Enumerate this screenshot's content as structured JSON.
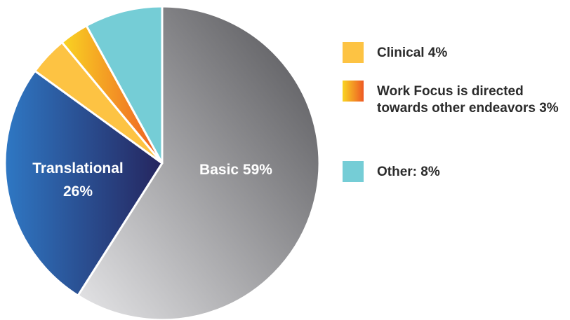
{
  "chart_data": {
    "type": "pie",
    "slices": [
      {
        "label": "Basic",
        "label_text": "Basic 59%",
        "value": 59,
        "color": "#6f6f72",
        "color_light": "#e6e6e8",
        "color_dark": "#505054"
      },
      {
        "label": "Translational",
        "label_text": [
          "Translational",
          "26%"
        ],
        "value": 26,
        "color": "#264a8e",
        "color_light": "#2f78c4",
        "color_dark": "#25255e"
      },
      {
        "label": "Clinical",
        "value": 4,
        "color": "#fdc343"
      },
      {
        "label": "Work Focus is directed towards other endeavors",
        "value": 3,
        "color": "#f26a27",
        "color_light": "#f9d423",
        "color_dark": "#ee5a24"
      },
      {
        "label": "Other",
        "value": 8,
        "color": "#75cdd6"
      }
    ],
    "legend": [
      {
        "text": "Clinical 4%",
        "color": "#fdc343"
      },
      {
        "text": "Work Focus is directed towards other endeavors 3%",
        "color": "#f26a27"
      },
      {
        "text": "Other: 8%",
        "color": "#75cdd6"
      }
    ],
    "legend_position": "right"
  }
}
